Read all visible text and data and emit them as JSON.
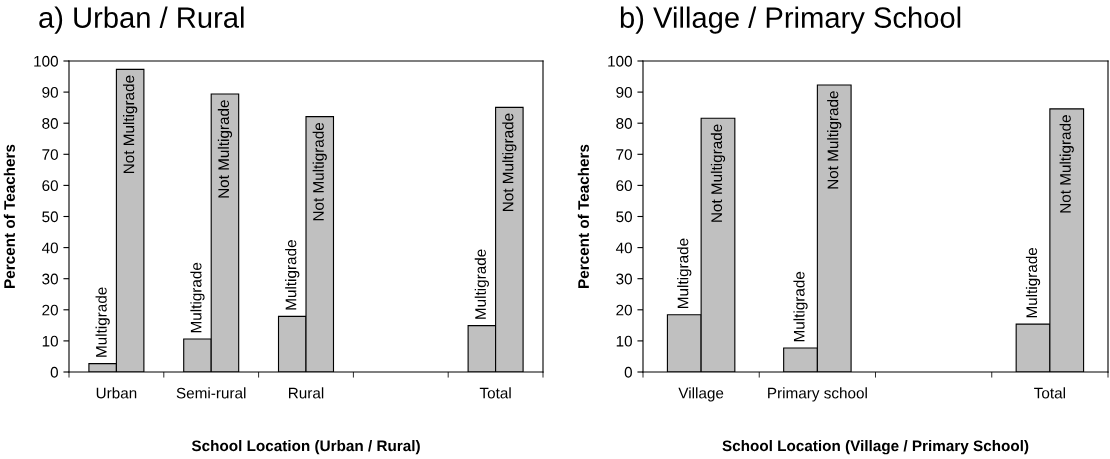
{
  "chart_data": [
    {
      "type": "bar",
      "title": "a) Urban / Rural",
      "xlabel": "School Location (Urban / Rural)",
      "ylabel": "Percent of Teachers",
      "categories": [
        "Urban",
        "Semi-rural",
        "Rural",
        null,
        "Total"
      ],
      "series": [
        {
          "name": "Multigrade",
          "color": "#c0c0c0",
          "values": [
            2.7,
            10.6,
            17.9,
            null,
            14.9
          ]
        },
        {
          "name": "Not Multigrade",
          "color": "#c0c0c0",
          "values": [
            97.3,
            89.4,
            82.1,
            null,
            85.1
          ]
        }
      ],
      "ylim": [
        0,
        100
      ],
      "yticks": [
        0,
        10,
        20,
        30,
        40,
        50,
        60,
        70,
        80,
        90,
        100
      ]
    },
    {
      "type": "bar",
      "title": "b) Village / Primary School",
      "xlabel": "School Location (Village / Primary School)",
      "ylabel": "Percent of Teachers",
      "categories": [
        "Village",
        "Primary school",
        null,
        "Total"
      ],
      "series": [
        {
          "name": "Multigrade",
          "color": "#c0c0c0",
          "values": [
            18.4,
            7.7,
            null,
            15.4
          ]
        },
        {
          "name": "Not Multigrade",
          "color": "#c0c0c0",
          "values": [
            81.6,
            92.3,
            null,
            84.6
          ]
        }
      ],
      "ylim": [
        0,
        100
      ],
      "yticks": [
        0,
        10,
        20,
        30,
        40,
        50,
        60,
        70,
        80,
        90,
        100
      ]
    }
  ]
}
